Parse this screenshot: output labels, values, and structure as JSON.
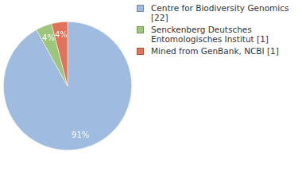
{
  "chart_data": {
    "type": "pie",
    "categories": [
      "Centre for Biodiversity Genomics [22]",
      "Senckenberg Deutsches Entomologisches Institut [1]",
      "Mined from GenBank, NCBI [1]"
    ],
    "values": [
      91,
      4,
      4
    ],
    "value_labels": [
      "91%",
      "4%",
      "4%"
    ],
    "colors": [
      "#9fbbe0",
      "#9dc67b",
      "#e0735a"
    ],
    "data_labels": true,
    "legend": "top-right"
  }
}
